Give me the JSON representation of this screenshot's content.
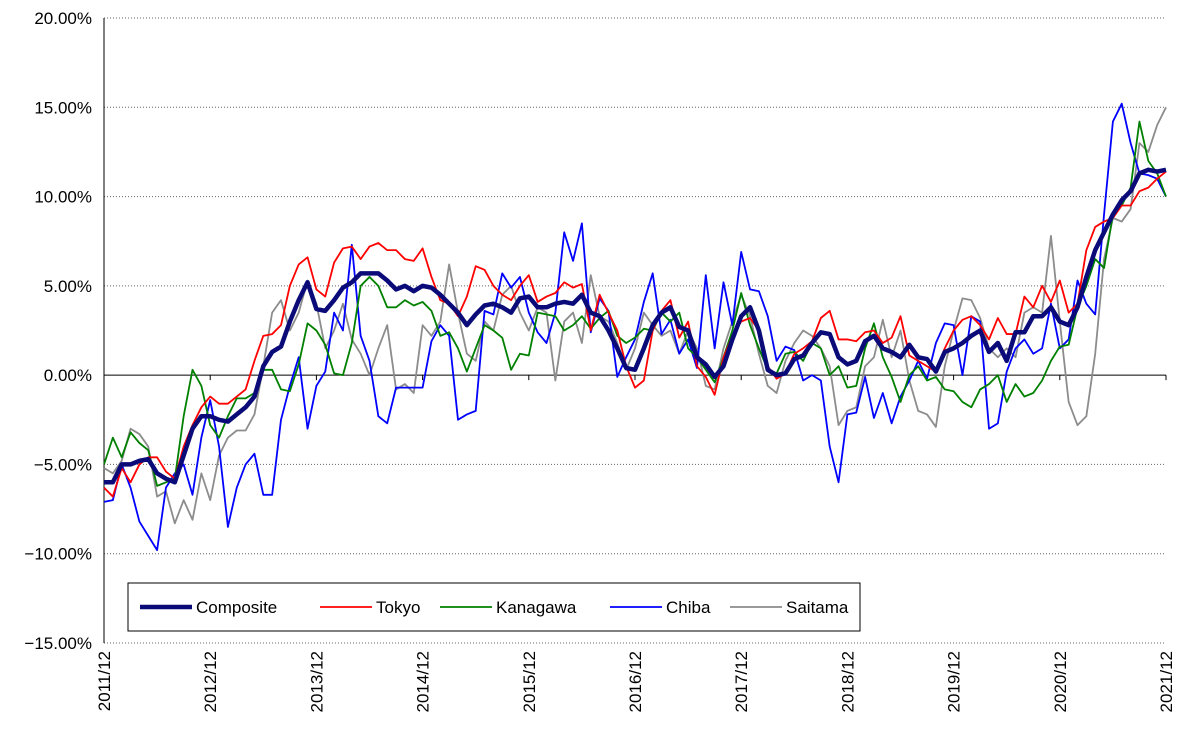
{
  "chart_data": {
    "type": "line",
    "categories": [
      "2011/12",
      null,
      null,
      null,
      null,
      null,
      null,
      null,
      null,
      null,
      null,
      null,
      "2012/12",
      null,
      null,
      null,
      null,
      null,
      null,
      null,
      null,
      null,
      null,
      null,
      "2013/12",
      null,
      null,
      null,
      null,
      null,
      null,
      null,
      null,
      null,
      null,
      null,
      "2014/12",
      null,
      null,
      null,
      null,
      null,
      null,
      null,
      null,
      null,
      null,
      null,
      "2015/12",
      null,
      null,
      null,
      null,
      null,
      null,
      null,
      null,
      null,
      null,
      null,
      "2016/12",
      null,
      null,
      null,
      null,
      null,
      null,
      null,
      null,
      null,
      null,
      null,
      "2017/12",
      null,
      null,
      null,
      null,
      null,
      null,
      null,
      null,
      null,
      null,
      null,
      "2018/12",
      null,
      null,
      null,
      null,
      null,
      null,
      null,
      null,
      null,
      null,
      null,
      "2019/12",
      null,
      null,
      null,
      null,
      null,
      null,
      null,
      null,
      null,
      null,
      null,
      "2020/12",
      null,
      null,
      null,
      null,
      null,
      null,
      null,
      null,
      null,
      null,
      null,
      "2021/12"
    ],
    "series": [
      {
        "name": "Composite",
        "color": "#0a0a78",
        "values": [
          -6.0,
          -6.0,
          -5.0,
          -5.0,
          -4.8,
          -4.7,
          -5.5,
          -5.8,
          -6.0,
          -4.5,
          -3.0,
          -2.3,
          -2.3,
          -2.5,
          -2.6,
          -2.2,
          -1.8,
          -1.2,
          0.5,
          1.3,
          1.6,
          3.0,
          4.2,
          5.2,
          3.7,
          3.6,
          4.2,
          4.9,
          5.2,
          5.7,
          5.7,
          5.7,
          5.3,
          4.8,
          5.0,
          4.7,
          5.0,
          4.9,
          4.5,
          4.0,
          3.5,
          2.8,
          3.4,
          3.9,
          4.0,
          3.8,
          3.5,
          4.3,
          4.4,
          3.8,
          3.8,
          4.0,
          4.1,
          4.0,
          4.5,
          3.5,
          3.3,
          2.5,
          1.5,
          0.4,
          0.3,
          1.5,
          2.8,
          3.5,
          3.8,
          2.7,
          2.5,
          1.0,
          0.6,
          -0.1,
          0.5,
          2.0,
          3.3,
          3.8,
          2.5,
          0.3,
          0.0,
          0.1,
          0.9,
          1.1,
          1.8,
          2.4,
          2.3,
          1.0,
          0.6,
          0.8,
          1.9,
          2.2,
          1.5,
          1.3,
          1.0,
          1.7,
          1.0,
          0.9,
          0.2,
          1.3,
          1.5,
          1.8,
          2.2,
          2.5,
          1.3,
          1.8,
          0.8,
          2.4,
          2.4,
          3.3,
          3.3,
          3.8,
          3.0,
          2.8,
          3.8,
          5.5,
          7.0,
          8.0,
          9.0,
          9.8,
          10.3,
          11.3,
          11.5,
          11.4,
          11.5
        ]
      },
      {
        "name": "Tokyo",
        "color": "#ff0000",
        "values": [
          -6.3,
          -6.8,
          -5.2,
          -6.0,
          -5.0,
          -4.6,
          -4.6,
          -5.4,
          -5.8,
          -4.0,
          -2.8,
          -1.8,
          -1.2,
          -1.6,
          -1.6,
          -1.2,
          -0.8,
          0.8,
          2.2,
          2.3,
          2.8,
          5.0,
          6.2,
          6.6,
          4.8,
          4.4,
          6.3,
          7.1,
          7.2,
          6.5,
          7.2,
          7.4,
          7.0,
          7.0,
          6.5,
          6.4,
          7.1,
          5.5,
          4.2,
          4.0,
          3.3,
          4.4,
          6.1,
          5.9,
          5.0,
          4.5,
          4.2,
          5.0,
          5.6,
          4.1,
          4.4,
          4.6,
          5.2,
          4.9,
          5.1,
          2.5,
          4.5,
          3.5,
          2.5,
          0.5,
          -0.7,
          -0.3,
          2.5,
          3.6,
          4.2,
          2.1,
          3.0,
          0.5,
          -0.1,
          -1.1,
          1.0,
          2.2,
          3.0,
          3.2,
          2.5,
          0.5,
          -0.2,
          0.1,
          1.2,
          1.5,
          1.9,
          3.2,
          3.6,
          2.0,
          2.0,
          1.9,
          2.4,
          2.5,
          1.8,
          2.1,
          3.3,
          1.1,
          0.8,
          0.5,
          0.2,
          1.5,
          2.5,
          3.1,
          3.3,
          2.8,
          2.0,
          3.2,
          2.3,
          2.3,
          4.4,
          3.8,
          5.0,
          4.1,
          5.3,
          3.5,
          4.0,
          7.0,
          8.3,
          8.6,
          8.8,
          9.5,
          9.5,
          10.3,
          10.5,
          11.0,
          11.4
        ]
      },
      {
        "name": "Kanagawa",
        "color": "#008000",
        "values": [
          -5.0,
          -3.5,
          -4.6,
          -3.2,
          -3.8,
          -4.2,
          -6.2,
          -6.0,
          -5.8,
          -2.3,
          0.3,
          -0.6,
          -2.8,
          -3.5,
          -2.3,
          -1.3,
          -1.3,
          -1.0,
          0.3,
          0.3,
          -0.8,
          -0.9,
          0.6,
          2.9,
          2.5,
          1.7,
          0.1,
          0.0,
          1.8,
          5.0,
          5.5,
          5.0,
          3.8,
          3.8,
          4.2,
          3.9,
          4.1,
          3.6,
          2.2,
          2.4,
          1.5,
          0.2,
          1.5,
          2.8,
          2.5,
          2.1,
          0.3,
          1.2,
          1.1,
          3.5,
          3.4,
          3.3,
          2.5,
          2.8,
          3.3,
          2.6,
          3.2,
          3.6,
          2.2,
          1.8,
          2.1,
          2.6,
          2.5,
          3.5,
          3.0,
          3.5,
          1.5,
          1.0,
          0.3,
          -0.4,
          1.0,
          2.5,
          4.6,
          2.8,
          1.5,
          0.3,
          0.1,
          1.2,
          1.3,
          0.8,
          1.8,
          1.5,
          0.0,
          0.5,
          -0.7,
          -0.6,
          1.5,
          2.9,
          1.0,
          -0.1,
          -1.5,
          0.0,
          0.5,
          -0.3,
          -0.1,
          -0.8,
          -0.9,
          -1.5,
          -1.8,
          -0.8,
          -0.5,
          0.0,
          -1.5,
          -0.5,
          -1.2,
          -1.0,
          -0.3,
          0.8,
          1.6,
          1.7,
          3.8,
          5.0,
          6.5,
          6.0,
          9.0,
          9.5,
          10.5,
          14.2,
          12.0,
          11.3,
          10.0
        ]
      },
      {
        "name": "Chiba",
        "color": "#0000ff",
        "values": [
          -7.1,
          -7.0,
          -5.0,
          -6.3,
          -8.2,
          -9.0,
          -9.8,
          -6.3,
          -5.5,
          -5.0,
          -6.7,
          -3.5,
          -1.4,
          -4.0,
          -8.5,
          -6.3,
          -5.0,
          -4.4,
          -6.7,
          -6.7,
          -2.5,
          -0.6,
          1.0,
          -3.0,
          -0.6,
          0.2,
          3.5,
          2.5,
          7.3,
          2.2,
          0.8,
          -2.3,
          -2.7,
          -0.7,
          -0.7,
          -0.7,
          -0.7,
          1.9,
          2.8,
          2.2,
          -2.5,
          -2.2,
          -2.0,
          3.6,
          3.4,
          5.7,
          4.9,
          5.5,
          3.5,
          2.4,
          1.8,
          3.5,
          8.0,
          6.4,
          8.5,
          2.4,
          4.3,
          3.6,
          -0.1,
          1.0,
          2.0,
          4.1,
          5.7,
          2.3,
          3.1,
          1.2,
          2.0,
          0.4,
          5.6,
          1.5,
          5.2,
          2.8,
          6.9,
          4.8,
          4.7,
          3.3,
          0.8,
          1.6,
          1.4,
          -0.3,
          0.0,
          -0.3,
          -4.0,
          -6.0,
          -2.2,
          -2.1,
          -0.1,
          -2.4,
          -1.0,
          -2.7,
          -1.2,
          -0.3,
          0.8,
          -0.2,
          1.8,
          2.9,
          2.8,
          0.0,
          3.3,
          3.0,
          -3.0,
          -2.7,
          0.2,
          1.5,
          2.0,
          1.2,
          1.5,
          4.0,
          1.5,
          2.0,
          5.3,
          4.0,
          3.4,
          9.0,
          14.2,
          15.2,
          13.0,
          11.3,
          11.2,
          11.0,
          10.0
        ]
      },
      {
        "name": "Saitama",
        "color": "#8c8c8c",
        "values": [
          -5.2,
          -5.5,
          -4.8,
          -3.0,
          -3.3,
          -4.0,
          -6.8,
          -6.5,
          -8.3,
          -7.0,
          -8.1,
          -5.5,
          -7.0,
          -4.5,
          -3.5,
          -3.1,
          -3.1,
          -2.2,
          0.5,
          3.5,
          4.2,
          2.5,
          3.5,
          5.3,
          4.0,
          1.5,
          2.5,
          4.0,
          2.0,
          1.2,
          0.0,
          1.5,
          2.8,
          -0.8,
          -0.5,
          -1.0,
          2.8,
          2.2,
          3.0,
          6.2,
          3.5,
          1.2,
          0.8,
          3.0,
          2.5,
          4.5,
          5.0,
          3.5,
          2.5,
          3.8,
          3.5,
          -0.3,
          3.0,
          3.5,
          1.8,
          5.6,
          3.3,
          3.0,
          1.8,
          0.3,
          1.5,
          3.5,
          2.8,
          2.2,
          2.5,
          1.2,
          2.5,
          1.5,
          -0.6,
          -0.8,
          1.5,
          3.0,
          4.5,
          3.3,
          1.2,
          -0.6,
          -1.0,
          0.8,
          1.8,
          2.5,
          2.2,
          1.5,
          0.5,
          -2.8,
          -2.0,
          -1.8,
          0.5,
          1.0,
          3.1,
          1.0,
          2.5,
          -0.3,
          -2.0,
          -2.2,
          -2.9,
          0.5,
          2.5,
          4.3,
          4.2,
          3.2,
          1.5,
          1.0,
          1.5,
          1.0,
          3.5,
          3.8,
          3.5,
          7.8,
          3.0,
          -1.5,
          -2.8,
          -2.3,
          1.2,
          6.5,
          8.8,
          8.6,
          9.3,
          13.0,
          12.5,
          14.0,
          15.0
        ]
      }
    ],
    "ylim": [
      -15,
      20
    ],
    "yticks": [
      {
        "value": -15,
        "label": "−15.00%"
      },
      {
        "value": -10,
        "label": "−10.00%"
      },
      {
        "value": -5,
        "label": "−5.00%"
      },
      {
        "value": 0,
        "label": "0.00%"
      },
      {
        "value": 5,
        "label": "5.00%"
      },
      {
        "value": 10,
        "label": "10.00%"
      },
      {
        "value": 15,
        "label": "15.00%"
      },
      {
        "value": 20,
        "label": "20.00%"
      }
    ],
    "grid": true,
    "legend": "lower left"
  }
}
